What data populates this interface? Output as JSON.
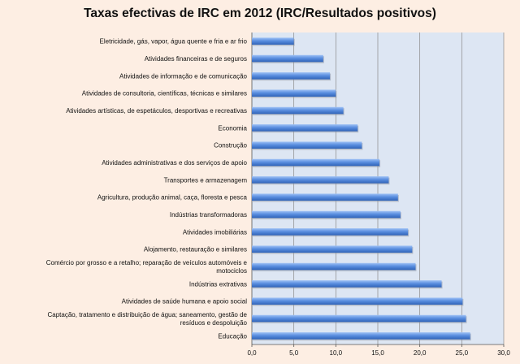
{
  "chart_data": {
    "type": "bar",
    "orientation": "horizontal",
    "title": "Taxas efectivas de IRC em 2012 (IRC/Resultados positivos)",
    "categories": [
      "Eletricidade, gás, vapor,  água quente e fria e ar frio",
      "Atividades financeiras e de seguros",
      "Atividades de informação e de comunicação",
      "Atividades de consultoria,  científicas, técnicas e similares",
      "Atividades artísticas, de espetáculos, desportivas e recreativas",
      "Economia",
      "Construção",
      "Atividades administrativas e dos serviços de apoio",
      "Transportes e armazenagem",
      "Agricultura, produção animal, caça,  floresta e pesca",
      "Indústrias transformadoras",
      "Atividades imobiliárias",
      "Alojamento, restauração e similares",
      "Comércio por grosso e a retalho; reparação de veículos automóveis e motociclos",
      "Indústrias extrativas",
      "Atividades de saúde humana e apoio  social",
      "Captação, tratamento e distribuição de água; saneamento,  gestão de resíduos e despoluição",
      "Educação"
    ],
    "values": [
      5.0,
      8.5,
      9.3,
      10.0,
      10.9,
      12.6,
      13.1,
      15.2,
      16.3,
      17.4,
      17.7,
      18.6,
      19.1,
      19.5,
      22.6,
      25.1,
      25.5,
      26.0
    ],
    "xlim": [
      0,
      30
    ],
    "xticks": [
      "0,0",
      "5,0",
      "10,0",
      "15,0",
      "20,0",
      "25,0",
      "30,0"
    ],
    "grid": true,
    "legend": "none",
    "colors": {
      "bar": "#5b8fe0",
      "plot_bg": "#dde6f3",
      "page_bg": "#fdeee3",
      "grid": "#8a8a8a"
    }
  }
}
